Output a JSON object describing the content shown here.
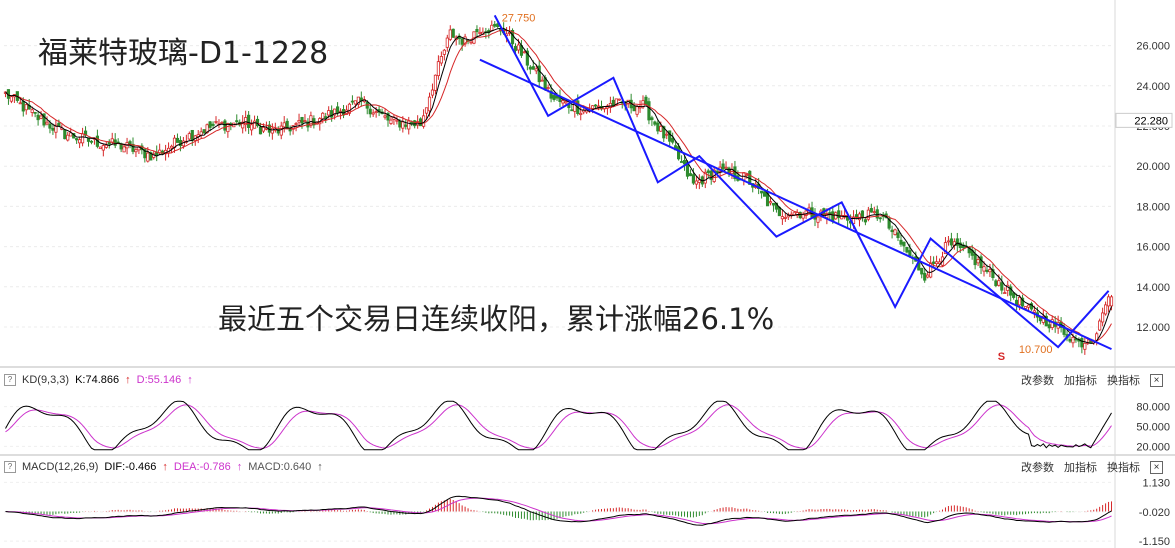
{
  "title": "福莱特玻璃-D1-1228",
  "annotation": "最近五个交易日连续收阳，累计涨幅26.1%",
  "price_panel": {
    "y_ticks": [
      "26.000",
      "24.000",
      "22.000",
      "20.000",
      "18.000",
      "16.000",
      "14.000",
      "12.000"
    ],
    "last_price_label": "22.280",
    "high_label": "27.750",
    "low_label": "10.700",
    "marker_symbol": "S"
  },
  "kd_panel": {
    "name": "KD(9,3,3)",
    "k_label": "K:74.866",
    "d_label": "D:55.146",
    "y_ticks": [
      "80.000",
      "50.000",
      "20.000"
    ],
    "menu": [
      "改参数",
      "加指标",
      "换指标"
    ],
    "close_symbol": "×",
    "help_symbol": "?"
  },
  "macd_panel": {
    "name": "MACD(12,26,9)",
    "dif_label": "DIF:-0.466",
    "dea_label": "DEA:-0.786",
    "macd_label": "MACD:0.640",
    "y_ticks": [
      "1.130",
      "-0.020",
      "-1.150"
    ],
    "menu": [
      "改参数",
      "加指标",
      "换指标"
    ],
    "close_symbol": "×",
    "help_symbol": "?"
  },
  "colors": {
    "up": "#d62728",
    "down": "#2e8b2e",
    "ma_black": "#000000",
    "ma_red": "#d62728",
    "trend_blue": "#1a1aff",
    "kd_k": "#000000",
    "kd_d": "#cc33cc",
    "macd_dif": "#000000",
    "macd_dea": "#cc33cc",
    "hi_lo_label": "#e07020"
  },
  "chart_data": [
    {
      "type": "candlestick",
      "title": "福莱特玻璃-D1-1228",
      "ylim": [
        10.7,
        27.75
      ],
      "y_ticks": [
        12,
        14,
        16,
        18,
        20,
        22,
        24,
        26
      ],
      "anchors_close": [
        [
          0,
          23.6
        ],
        [
          10,
          22.5
        ],
        [
          20,
          21.6
        ],
        [
          30,
          21.2
        ],
        [
          40,
          21.0
        ],
        [
          50,
          20.5
        ],
        [
          60,
          21.4
        ],
        [
          70,
          22.0
        ],
        [
          80,
          22.2
        ],
        [
          90,
          21.7
        ],
        [
          100,
          22.1
        ],
        [
          110,
          22.6
        ],
        [
          120,
          23.2
        ],
        [
          130,
          22.2
        ],
        [
          140,
          22.1
        ],
        [
          145,
          24.5
        ],
        [
          150,
          26.6
        ],
        [
          155,
          26.2
        ],
        [
          160,
          26.9
        ],
        [
          168,
          26.8
        ],
        [
          175,
          25.4
        ],
        [
          185,
          23.3
        ],
        [
          195,
          22.8
        ],
        [
          205,
          23.1
        ],
        [
          215,
          23.0
        ],
        [
          225,
          20.9
        ],
        [
          232,
          19.1
        ],
        [
          240,
          19.8
        ],
        [
          250,
          19.4
        ],
        [
          260,
          17.7
        ],
        [
          270,
          17.7
        ],
        [
          285,
          17.4
        ],
        [
          295,
          17.6
        ],
        [
          305,
          15.5
        ],
        [
          310,
          14.6
        ],
        [
          318,
          16.1
        ],
        [
          325,
          15.6
        ],
        [
          335,
          14.2
        ],
        [
          345,
          12.8
        ],
        [
          355,
          12.0
        ],
        [
          362,
          11.2
        ],
        [
          367,
          11.5
        ],
        [
          372,
          13.5
        ]
      ],
      "high": 27.75,
      "low": 10.7,
      "last": 22.28,
      "trendlines": [
        [
          [
            165,
            27.5
          ],
          [
            183,
            22.5
          ],
          [
            205,
            24.4
          ],
          [
            220,
            19.2
          ],
          [
            234,
            20.5
          ],
          [
            260,
            16.5
          ],
          [
            282,
            18.2
          ],
          [
            300,
            13.0
          ],
          [
            312,
            16.4
          ],
          [
            355,
            11.0
          ],
          [
            372,
            13.8
          ]
        ],
        [
          [
            160,
            25.3
          ],
          [
            373,
            10.9
          ]
        ]
      ]
    },
    {
      "type": "line",
      "name": "KD(9,3,3)",
      "series": [
        {
          "name": "K",
          "last": 74.866
        },
        {
          "name": "D",
          "last": 55.146
        }
      ],
      "y_ticks": [
        20,
        50,
        80
      ]
    },
    {
      "type": "bar+line",
      "name": "MACD(12,26,9)",
      "series": [
        {
          "name": "DIF",
          "last": -0.466
        },
        {
          "name": "DEA",
          "last": -0.786
        },
        {
          "name": "MACD",
          "last": 0.64
        }
      ],
      "y_ticks": [
        -1.15,
        -0.02,
        1.13
      ]
    }
  ]
}
